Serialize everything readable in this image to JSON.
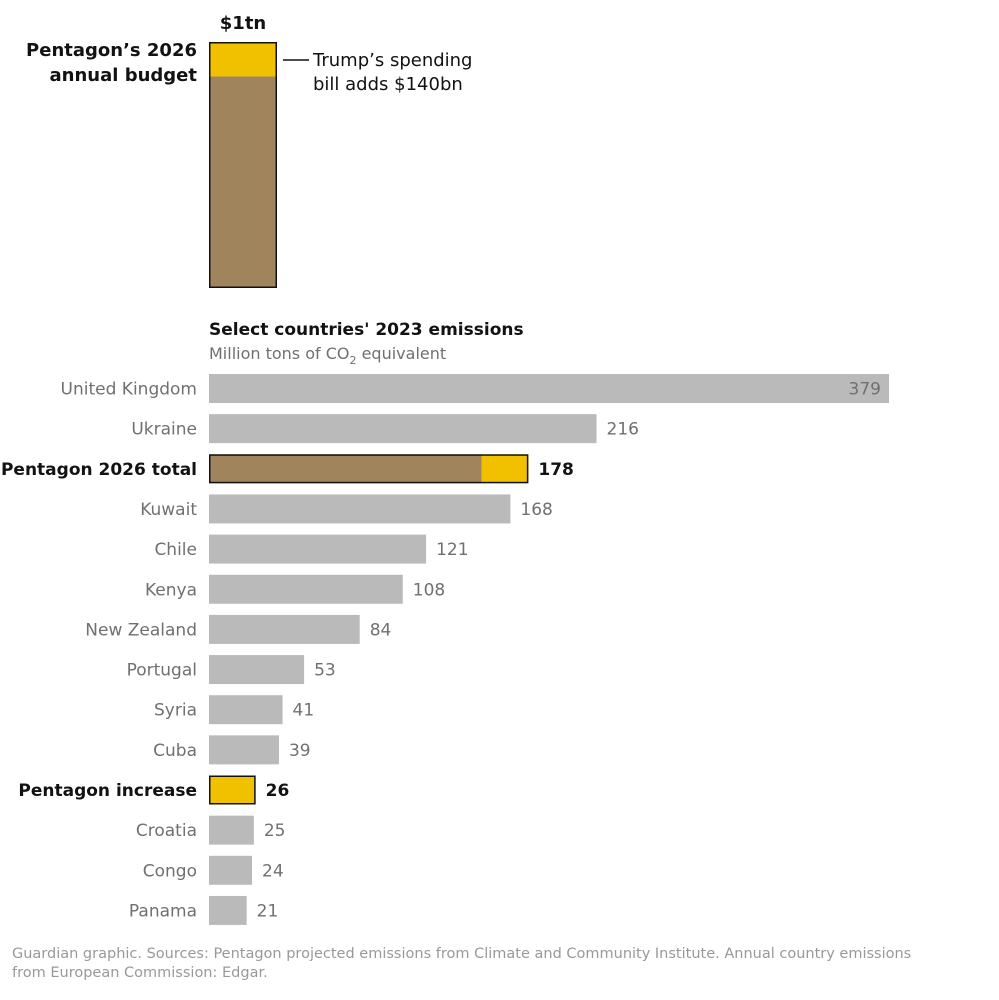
{
  "colors": {
    "base": "#a0845c",
    "increase": "#f1c100",
    "country": "#bababa",
    "outline": "#121212"
  },
  "budget": {
    "value_label": "$1tn",
    "label_line1": "Pentagon’s 2026",
    "label_line2": "annual budget",
    "annotation_line1": "Trump’s spending",
    "annotation_line2": "bill adds $140bn",
    "total": 1000,
    "increase": 140,
    "unit": "bn"
  },
  "chart_data": {
    "type": "bar",
    "orientation": "horizontal",
    "title": "Select countries' 2023 emissions",
    "subtitle_main": "Million tons of CO",
    "subtitle_sub": "2",
    "subtitle_rest": " equivalent",
    "xlim": [
      0,
      379
    ],
    "grid": false,
    "categories": [
      "United Kingdom",
      "Ukraine",
      "Pentagon 2026 total",
      "Kuwait",
      "Chile",
      "Kenya",
      "New Zealand",
      "Portugal",
      "Syria",
      "Cuba",
      "Pentagon increase",
      "Croatia",
      "Congo",
      "Panama"
    ],
    "values": [
      379,
      216,
      178,
      168,
      121,
      108,
      84,
      53,
      41,
      39,
      26,
      25,
      24,
      21
    ],
    "value_labels": [
      "379",
      "216",
      "178",
      "168",
      "121",
      "108",
      "84",
      "53",
      "41",
      "39",
      "26",
      "25",
      "24",
      "21"
    ],
    "highlighted": [
      false,
      false,
      true,
      false,
      false,
      false,
      false,
      false,
      false,
      false,
      true,
      false,
      false,
      false
    ],
    "pentagon_total_split": {
      "base": 152,
      "increase": 26
    }
  },
  "footer": {
    "source_text": "Guardian graphic. Sources: Pentagon projected emissions from Climate and Community Institute. Annual country emissions from European Commission: Edgar."
  }
}
